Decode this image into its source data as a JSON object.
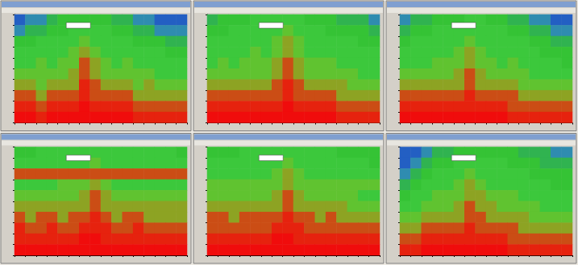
{
  "chart_data": [
    {
      "type": "heatmap",
      "tick_labels": false,
      "zlim": [
        0,
        10
      ],
      "cells": [
        [
          1,
          2,
          2,
          3,
          4,
          4,
          4,
          4,
          4,
          3,
          3,
          2,
          2,
          1,
          1,
          1
        ],
        [
          2,
          3,
          3,
          4,
          4,
          5,
          5,
          5,
          5,
          4,
          4,
          3,
          3,
          2,
          2,
          2
        ],
        [
          4,
          4,
          5,
          5,
          5,
          5,
          6,
          5,
          5,
          5,
          5,
          4,
          4,
          4,
          3,
          3
        ],
        [
          5,
          5,
          5,
          5,
          5,
          6,
          7,
          6,
          5,
          5,
          5,
          5,
          5,
          5,
          4,
          4
        ],
        [
          5,
          5,
          6,
          5,
          6,
          6,
          8,
          7,
          6,
          5,
          6,
          5,
          5,
          5,
          5,
          5
        ],
        [
          6,
          6,
          6,
          6,
          6,
          7,
          8,
          7,
          6,
          6,
          6,
          6,
          6,
          5,
          5,
          5
        ],
        [
          7,
          7,
          6,
          7,
          7,
          7,
          9,
          8,
          7,
          7,
          7,
          6,
          7,
          6,
          6,
          6
        ],
        [
          8,
          8,
          7,
          8,
          8,
          8,
          9,
          8,
          8,
          8,
          8,
          7,
          7,
          7,
          7,
          7
        ],
        [
          9,
          9,
          8,
          9,
          9,
          9,
          10,
          9,
          9,
          9,
          9,
          8,
          8,
          8,
          8,
          8
        ],
        [
          10,
          10,
          9,
          10,
          10,
          10,
          10,
          10,
          10,
          10,
          10,
          9,
          9,
          9,
          9,
          9
        ]
      ]
    },
    {
      "type": "heatmap",
      "tick_labels": false,
      "zlim": [
        0,
        10
      ],
      "cells": [
        [
          3,
          4,
          4,
          4,
          5,
          5,
          5,
          5,
          5,
          4,
          4,
          4,
          3,
          3,
          3,
          2
        ],
        [
          4,
          4,
          5,
          5,
          5,
          5,
          5,
          6,
          5,
          5,
          5,
          4,
          4,
          4,
          4,
          3
        ],
        [
          5,
          5,
          5,
          5,
          5,
          5,
          6,
          7,
          6,
          5,
          5,
          5,
          5,
          5,
          4,
          4
        ],
        [
          5,
          5,
          5,
          5,
          6,
          5,
          6,
          7,
          6,
          5,
          5,
          5,
          5,
          5,
          5,
          5
        ],
        [
          5,
          6,
          5,
          6,
          6,
          6,
          7,
          8,
          7,
          6,
          6,
          6,
          5,
          5,
          5,
          5
        ],
        [
          6,
          6,
          6,
          6,
          6,
          6,
          7,
          8,
          7,
          6,
          6,
          6,
          6,
          6,
          5,
          5
        ],
        [
          7,
          7,
          7,
          7,
          7,
          7,
          8,
          9,
          8,
          7,
          7,
          7,
          7,
          6,
          6,
          6
        ],
        [
          8,
          8,
          8,
          8,
          8,
          8,
          8,
          9,
          8,
          8,
          8,
          8,
          7,
          7,
          7,
          7
        ],
        [
          9,
          9,
          9,
          9,
          9,
          9,
          9,
          10,
          9,
          9,
          9,
          9,
          8,
          8,
          8,
          8
        ],
        [
          10,
          10,
          10,
          10,
          10,
          10,
          10,
          10,
          10,
          10,
          10,
          10,
          9,
          9,
          9,
          9
        ]
      ]
    },
    {
      "type": "heatmap",
      "tick_labels": false,
      "zlim": [
        0,
        10
      ],
      "cells": [
        [
          2,
          3,
          3,
          4,
          4,
          4,
          5,
          5,
          4,
          4,
          3,
          3,
          2,
          2,
          1,
          1
        ],
        [
          3,
          4,
          4,
          5,
          5,
          5,
          5,
          5,
          5,
          5,
          4,
          4,
          3,
          3,
          2,
          2
        ],
        [
          4,
          5,
          5,
          5,
          5,
          5,
          6,
          5,
          5,
          5,
          5,
          5,
          4,
          4,
          3,
          3
        ],
        [
          5,
          5,
          5,
          5,
          5,
          6,
          7,
          6,
          5,
          5,
          5,
          5,
          5,
          4,
          4,
          4
        ],
        [
          5,
          5,
          5,
          6,
          6,
          6,
          7,
          6,
          6,
          5,
          6,
          5,
          5,
          5,
          5,
          4
        ],
        [
          6,
          6,
          6,
          6,
          6,
          7,
          8,
          7,
          6,
          6,
          6,
          6,
          5,
          5,
          5,
          5
        ],
        [
          7,
          7,
          7,
          7,
          7,
          7,
          8,
          7,
          7,
          7,
          7,
          6,
          6,
          6,
          6,
          6
        ],
        [
          8,
          8,
          8,
          8,
          8,
          8,
          9,
          8,
          8,
          8,
          8,
          7,
          7,
          7,
          7,
          7
        ],
        [
          9,
          9,
          9,
          9,
          9,
          9,
          9,
          9,
          9,
          9,
          8,
          8,
          8,
          8,
          8,
          8
        ],
        [
          10,
          10,
          10,
          10,
          10,
          10,
          10,
          10,
          10,
          10,
          9,
          9,
          9,
          9,
          9,
          9
        ]
      ]
    },
    {
      "type": "heatmap",
      "tick_labels": false,
      "zlim": [
        0,
        10
      ],
      "cells": [
        [
          4,
          4,
          5,
          5,
          5,
          5,
          5,
          5,
          5,
          5,
          5,
          5,
          5,
          5,
          5,
          4
        ],
        [
          5,
          5,
          5,
          5,
          5,
          5,
          5,
          6,
          5,
          5,
          5,
          5,
          5,
          5,
          5,
          5
        ],
        [
          8,
          8,
          8,
          8,
          8,
          8,
          8,
          8,
          8,
          8,
          8,
          8,
          8,
          8,
          8,
          8
        ],
        [
          5,
          5,
          5,
          5,
          6,
          6,
          6,
          7,
          6,
          5,
          5,
          5,
          5,
          5,
          5,
          5
        ],
        [
          6,
          6,
          6,
          6,
          6,
          6,
          7,
          8,
          7,
          6,
          6,
          6,
          6,
          6,
          6,
          6
        ],
        [
          7,
          7,
          7,
          7,
          7,
          7,
          7,
          8,
          7,
          7,
          7,
          7,
          7,
          7,
          7,
          7
        ],
        [
          8,
          7,
          8,
          8,
          7,
          8,
          8,
          9,
          8,
          7,
          8,
          8,
          7,
          7,
          7,
          7
        ],
        [
          9,
          8,
          8,
          9,
          8,
          8,
          9,
          9,
          9,
          8,
          8,
          9,
          8,
          8,
          8,
          8
        ],
        [
          9,
          9,
          9,
          9,
          9,
          9,
          10,
          10,
          9,
          9,
          9,
          9,
          9,
          9,
          9,
          9
        ],
        [
          10,
          10,
          10,
          10,
          10,
          10,
          10,
          10,
          10,
          10,
          10,
          10,
          10,
          10,
          10,
          10
        ]
      ]
    },
    {
      "type": "heatmap",
      "tick_labels": false,
      "zlim": [
        0,
        10
      ],
      "cells": [
        [
          4,
          4,
          4,
          5,
          5,
          5,
          5,
          5,
          5,
          5,
          5,
          5,
          4,
          4,
          4,
          4
        ],
        [
          5,
          5,
          5,
          5,
          5,
          5,
          5,
          6,
          5,
          5,
          5,
          5,
          5,
          5,
          5,
          4
        ],
        [
          5,
          5,
          5,
          5,
          5,
          5,
          6,
          7,
          6,
          5,
          5,
          5,
          5,
          5,
          5,
          5
        ],
        [
          6,
          6,
          6,
          6,
          6,
          6,
          6,
          7,
          6,
          6,
          6,
          6,
          6,
          6,
          6,
          6
        ],
        [
          6,
          6,
          6,
          6,
          6,
          6,
          7,
          8,
          7,
          6,
          6,
          6,
          6,
          6,
          5,
          5
        ],
        [
          7,
          7,
          7,
          7,
          7,
          7,
          7,
          8,
          7,
          7,
          7,
          7,
          7,
          6,
          6,
          6
        ],
        [
          8,
          8,
          7,
          8,
          8,
          8,
          8,
          9,
          8,
          8,
          7,
          8,
          7,
          7,
          7,
          7
        ],
        [
          8,
          8,
          8,
          8,
          8,
          8,
          9,
          9,
          9,
          8,
          8,
          8,
          8,
          8,
          8,
          8
        ],
        [
          9,
          9,
          9,
          9,
          9,
          9,
          10,
          10,
          9,
          9,
          9,
          9,
          9,
          9,
          9,
          9
        ],
        [
          10,
          10,
          10,
          10,
          10,
          10,
          10,
          10,
          10,
          10,
          10,
          10,
          10,
          10,
          10,
          10
        ]
      ]
    },
    {
      "type": "heatmap",
      "tick_labels": false,
      "zlim": [
        0,
        10
      ],
      "cells": [
        [
          1,
          1,
          2,
          3,
          3,
          4,
          4,
          4,
          4,
          4,
          4,
          3,
          3,
          3,
          2,
          2
        ],
        [
          1,
          2,
          3,
          4,
          4,
          5,
          5,
          5,
          5,
          5,
          4,
          4,
          4,
          3,
          3,
          3
        ],
        [
          2,
          3,
          4,
          5,
          5,
          5,
          6,
          5,
          5,
          5,
          5,
          5,
          4,
          4,
          4,
          4
        ],
        [
          3,
          4,
          5,
          5,
          5,
          6,
          7,
          6,
          5,
          5,
          5,
          5,
          5,
          5,
          4,
          4
        ],
        [
          4,
          5,
          5,
          6,
          6,
          6,
          7,
          7,
          6,
          6,
          6,
          5,
          5,
          5,
          5,
          5
        ],
        [
          5,
          5,
          6,
          6,
          6,
          7,
          8,
          7,
          7,
          6,
          6,
          6,
          6,
          5,
          5,
          5
        ],
        [
          6,
          6,
          7,
          7,
          7,
          7,
          8,
          8,
          7,
          7,
          7,
          7,
          6,
          6,
          6,
          6
        ],
        [
          7,
          7,
          8,
          8,
          8,
          8,
          9,
          8,
          8,
          8,
          8,
          7,
          7,
          7,
          7,
          7
        ],
        [
          8,
          8,
          9,
          9,
          9,
          9,
          9,
          9,
          9,
          9,
          8,
          8,
          8,
          8,
          8,
          8
        ],
        [
          9,
          9,
          10,
          10,
          10,
          10,
          10,
          10,
          10,
          10,
          9,
          9,
          9,
          9,
          9,
          9
        ]
      ]
    }
  ]
}
